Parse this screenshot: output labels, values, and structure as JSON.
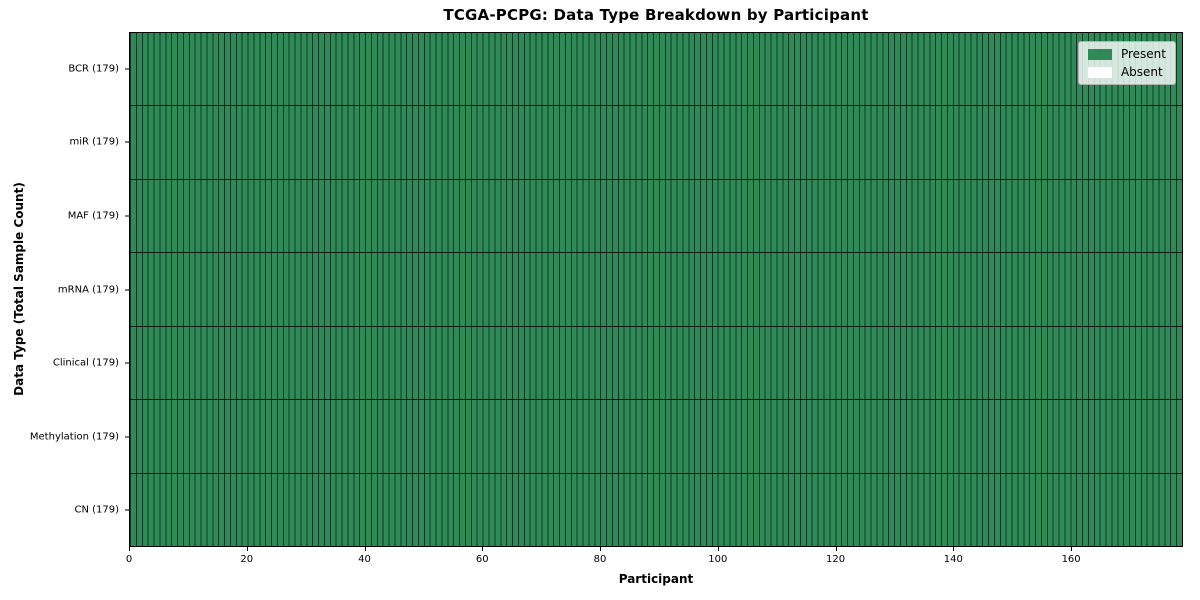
{
  "chart_data": {
    "type": "heatmap",
    "title": "TCGA-PCPG: Data Type Breakdown by Participant",
    "xlabel": "Participant",
    "ylabel": "Data Type (Total Sample Count)",
    "n_participants": 179,
    "xlim": [
      0,
      179
    ],
    "x_ticks": [
      0,
      20,
      40,
      60,
      80,
      100,
      120,
      140,
      160
    ],
    "rows": [
      {
        "data_type": "BCR",
        "label": "BCR (179)",
        "total_samples": 179,
        "present_count": 179,
        "absent_count": 0
      },
      {
        "data_type": "miR",
        "label": "miR (179)",
        "total_samples": 179,
        "present_count": 179,
        "absent_count": 0
      },
      {
        "data_type": "MAF",
        "label": "MAF (179)",
        "total_samples": 179,
        "present_count": 179,
        "absent_count": 0
      },
      {
        "data_type": "mRNA",
        "label": "mRNA (179)",
        "total_samples": 179,
        "present_count": 179,
        "absent_count": 0
      },
      {
        "data_type": "Clinical",
        "label": "Clinical (179)",
        "total_samples": 179,
        "present_count": 179,
        "absent_count": 0
      },
      {
        "data_type": "Methylation",
        "label": "Methylation (179)",
        "total_samples": 179,
        "present_count": 179,
        "absent_count": 0
      },
      {
        "data_type": "CN",
        "label": "CN (179)",
        "total_samples": 179,
        "present_count": 179,
        "absent_count": 0
      }
    ],
    "legend": [
      {
        "label": "Present",
        "color": "#2e8b57"
      },
      {
        "label": "Absent",
        "color": "#ffffff"
      }
    ],
    "legend_position": "upper-right",
    "grid": "cell-borders",
    "colors": {
      "present": "#2e8b57",
      "absent": "#ffffff",
      "cell_edge": "rgba(0,0,0,0.6)",
      "row_edge": "rgba(0,0,0,0.8)",
      "axis": "#000000"
    }
  }
}
